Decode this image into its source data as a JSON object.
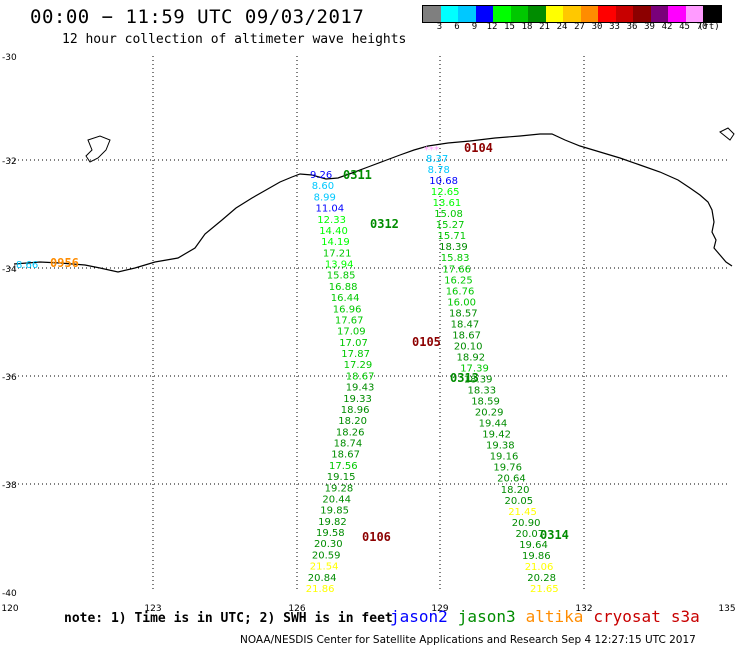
{
  "header": {
    "title": "00:00 − 11:59 UTC 09/03/2017",
    "subtitle": "12 hour collection of altimeter wave heights"
  },
  "colorbar": {
    "colors": [
      "#7f7f7f",
      "#00ffff",
      "#00c8ff",
      "#0000ff",
      "#00ff00",
      "#00c800",
      "#008c00",
      "#ffff00",
      "#ffc800",
      "#ff8c00",
      "#ff0000",
      "#c80000",
      "#8c0000",
      "#7a007a",
      "#ff00ff",
      "#ff9bff",
      "#000000"
    ],
    "labels": [
      "3",
      "6",
      "9",
      "12",
      "15",
      "18",
      "21",
      "24",
      "27",
      "30",
      "33",
      "36",
      "39",
      "42",
      "45",
      "70"
    ],
    "unit": "(ft)"
  },
  "map": {
    "lon_range": [
      120,
      135
    ],
    "lat_range": [
      -30,
      -40
    ],
    "y_labels": [
      "-30",
      "-32",
      "-34",
      "-36",
      "-38",
      "-40"
    ],
    "x_labels": [
      "120",
      "123",
      "126",
      "129",
      "132",
      "135"
    ]
  },
  "tracks": [
    {
      "time": "0311",
      "color": "#008c00",
      "points": [
        {
          "v": "9.26",
          "c": "#0000ff"
        },
        {
          "v": "8.60",
          "c": "#00c8ff"
        },
        {
          "v": "8.99",
          "c": "#00c8ff"
        },
        {
          "v": "11.04",
          "c": "#0000ff"
        },
        {
          "v": "12.33",
          "c": "#00ff00"
        },
        {
          "v": "14.40",
          "c": "#00ff00"
        },
        {
          "v": "14.19",
          "c": "#00ff00"
        },
        {
          "v": "17.21",
          "c": "#00c800"
        },
        {
          "v": "13.94",
          "c": "#00ff00"
        },
        {
          "v": "15.85",
          "c": "#00c800"
        },
        {
          "v": "16.88",
          "c": "#00c800"
        },
        {
          "v": "16.44",
          "c": "#00c800"
        },
        {
          "v": "16.96",
          "c": "#00c800"
        },
        {
          "v": "17.67",
          "c": "#00c800"
        },
        {
          "v": "17.09",
          "c": "#00c800"
        },
        {
          "v": "17.07",
          "c": "#00c800"
        },
        {
          "v": "17.87",
          "c": "#00c800"
        },
        {
          "v": "17.29",
          "c": "#00c800"
        },
        {
          "v": "18.67",
          "c": "#00c800"
        },
        {
          "v": "19.43",
          "c": "#008c00"
        },
        {
          "v": "19.33",
          "c": "#008c00"
        },
        {
          "v": "18.96",
          "c": "#008c00"
        },
        {
          "v": "18.20",
          "c": "#008c00"
        },
        {
          "v": "18.26",
          "c": "#008c00"
        },
        {
          "v": "18.74",
          "c": "#008c00"
        },
        {
          "v": "18.67",
          "c": "#008c00"
        },
        {
          "v": "17.56",
          "c": "#00c800"
        },
        {
          "v": "19.15",
          "c": "#008c00"
        },
        {
          "v": "19.28",
          "c": "#008c00"
        },
        {
          "v": "20.44",
          "c": "#008c00"
        },
        {
          "v": "19.85",
          "c": "#008c00"
        },
        {
          "v": "19.82",
          "c": "#008c00"
        },
        {
          "v": "19.58",
          "c": "#008c00"
        },
        {
          "v": "20.30",
          "c": "#008c00"
        },
        {
          "v": "20.59",
          "c": "#008c00"
        },
        {
          "v": "21.54",
          "c": "#ffff00"
        },
        {
          "v": "20.84",
          "c": "#008c00"
        },
        {
          "v": "21.86",
          "c": "#ffff00"
        }
      ]
    },
    {
      "time": "0313",
      "color": "#008c00",
      "points": [
        {
          "v": "8.37",
          "c": "#00c8ff"
        },
        {
          "v": "8.78",
          "c": "#00c8ff"
        },
        {
          "v": "10.68",
          "c": "#0000ff"
        },
        {
          "v": "12.65",
          "c": "#00ff00"
        },
        {
          "v": "13.61",
          "c": "#00ff00"
        },
        {
          "v": "15.08",
          "c": "#00c800"
        },
        {
          "v": "15.27",
          "c": "#00c800"
        },
        {
          "v": "15.71",
          "c": "#00c800"
        },
        {
          "v": "18.39",
          "c": "#008c00"
        },
        {
          "v": "15.83",
          "c": "#00c800"
        },
        {
          "v": "17.66",
          "c": "#00c800"
        },
        {
          "v": "16.25",
          "c": "#00c800"
        },
        {
          "v": "16.76",
          "c": "#00c800"
        },
        {
          "v": "16.00",
          "c": "#00c800"
        },
        {
          "v": "18.57",
          "c": "#008c00"
        },
        {
          "v": "18.47",
          "c": "#008c00"
        },
        {
          "v": "18.67",
          "c": "#008c00"
        },
        {
          "v": "20.10",
          "c": "#008c00"
        },
        {
          "v": "18.92",
          "c": "#008c00"
        },
        {
          "v": "17.39",
          "c": "#00c800"
        },
        {
          "v": "18.39",
          "c": "#008c00"
        },
        {
          "v": "18.33",
          "c": "#008c00"
        },
        {
          "v": "18.59",
          "c": "#008c00"
        },
        {
          "v": "20.29",
          "c": "#008c00"
        },
        {
          "v": "19.44",
          "c": "#008c00"
        },
        {
          "v": "19.42",
          "c": "#008c00"
        },
        {
          "v": "19.38",
          "c": "#008c00"
        },
        {
          "v": "19.16",
          "c": "#008c00"
        },
        {
          "v": "19.76",
          "c": "#008c00"
        },
        {
          "v": "20.64",
          "c": "#008c00"
        },
        {
          "v": "18.20",
          "c": "#008c00"
        },
        {
          "v": "20.05",
          "c": "#008c00"
        },
        {
          "v": "21.45",
          "c": "#ffff00"
        },
        {
          "v": "20.90",
          "c": "#008c00"
        },
        {
          "v": "20.07",
          "c": "#008c00"
        },
        {
          "v": "19.64",
          "c": "#008c00"
        },
        {
          "v": "19.86",
          "c": "#008c00"
        },
        {
          "v": "21.06",
          "c": "#ffff00"
        },
        {
          "v": "20.28",
          "c": "#008c00"
        },
        {
          "v": "21.65",
          "c": "#ffff00"
        }
      ]
    }
  ],
  "time_labels": [
    {
      "t": "0104",
      "c": "#8c0000"
    },
    {
      "t": "0311",
      "c": "#008c00"
    },
    {
      "t": "0312",
      "c": "#008c00"
    },
    {
      "t": "0105",
      "c": "#8c0000"
    },
    {
      "t": "0313",
      "c": "#008c00"
    },
    {
      "t": "0106",
      "c": "#8c0000"
    },
    {
      "t": "0314",
      "c": "#008c00"
    },
    {
      "t": "0956",
      "c": "#ff8c00"
    }
  ],
  "extra_points": [
    {
      "v": "8.66",
      "c": "#00c8ff"
    },
    {
      "v": "***",
      "c": "#ff9bff"
    }
  ],
  "note": "note: 1) Time is in UTC; 2) SWH is in feet",
  "legend": [
    {
      "name": "jason2",
      "color": "#0000ff"
    },
    {
      "name": "jason3",
      "color": "#008c00"
    },
    {
      "name": "altika",
      "color": "#ff8c00"
    },
    {
      "name": "cryosat",
      "color": "#c80000"
    },
    {
      "name": "s3a",
      "color": "#c80000"
    }
  ],
  "footer": "NOAA/NESDIS Center for Satellite Applications and Research   Sep  4 12:27:15 UTC 2017"
}
